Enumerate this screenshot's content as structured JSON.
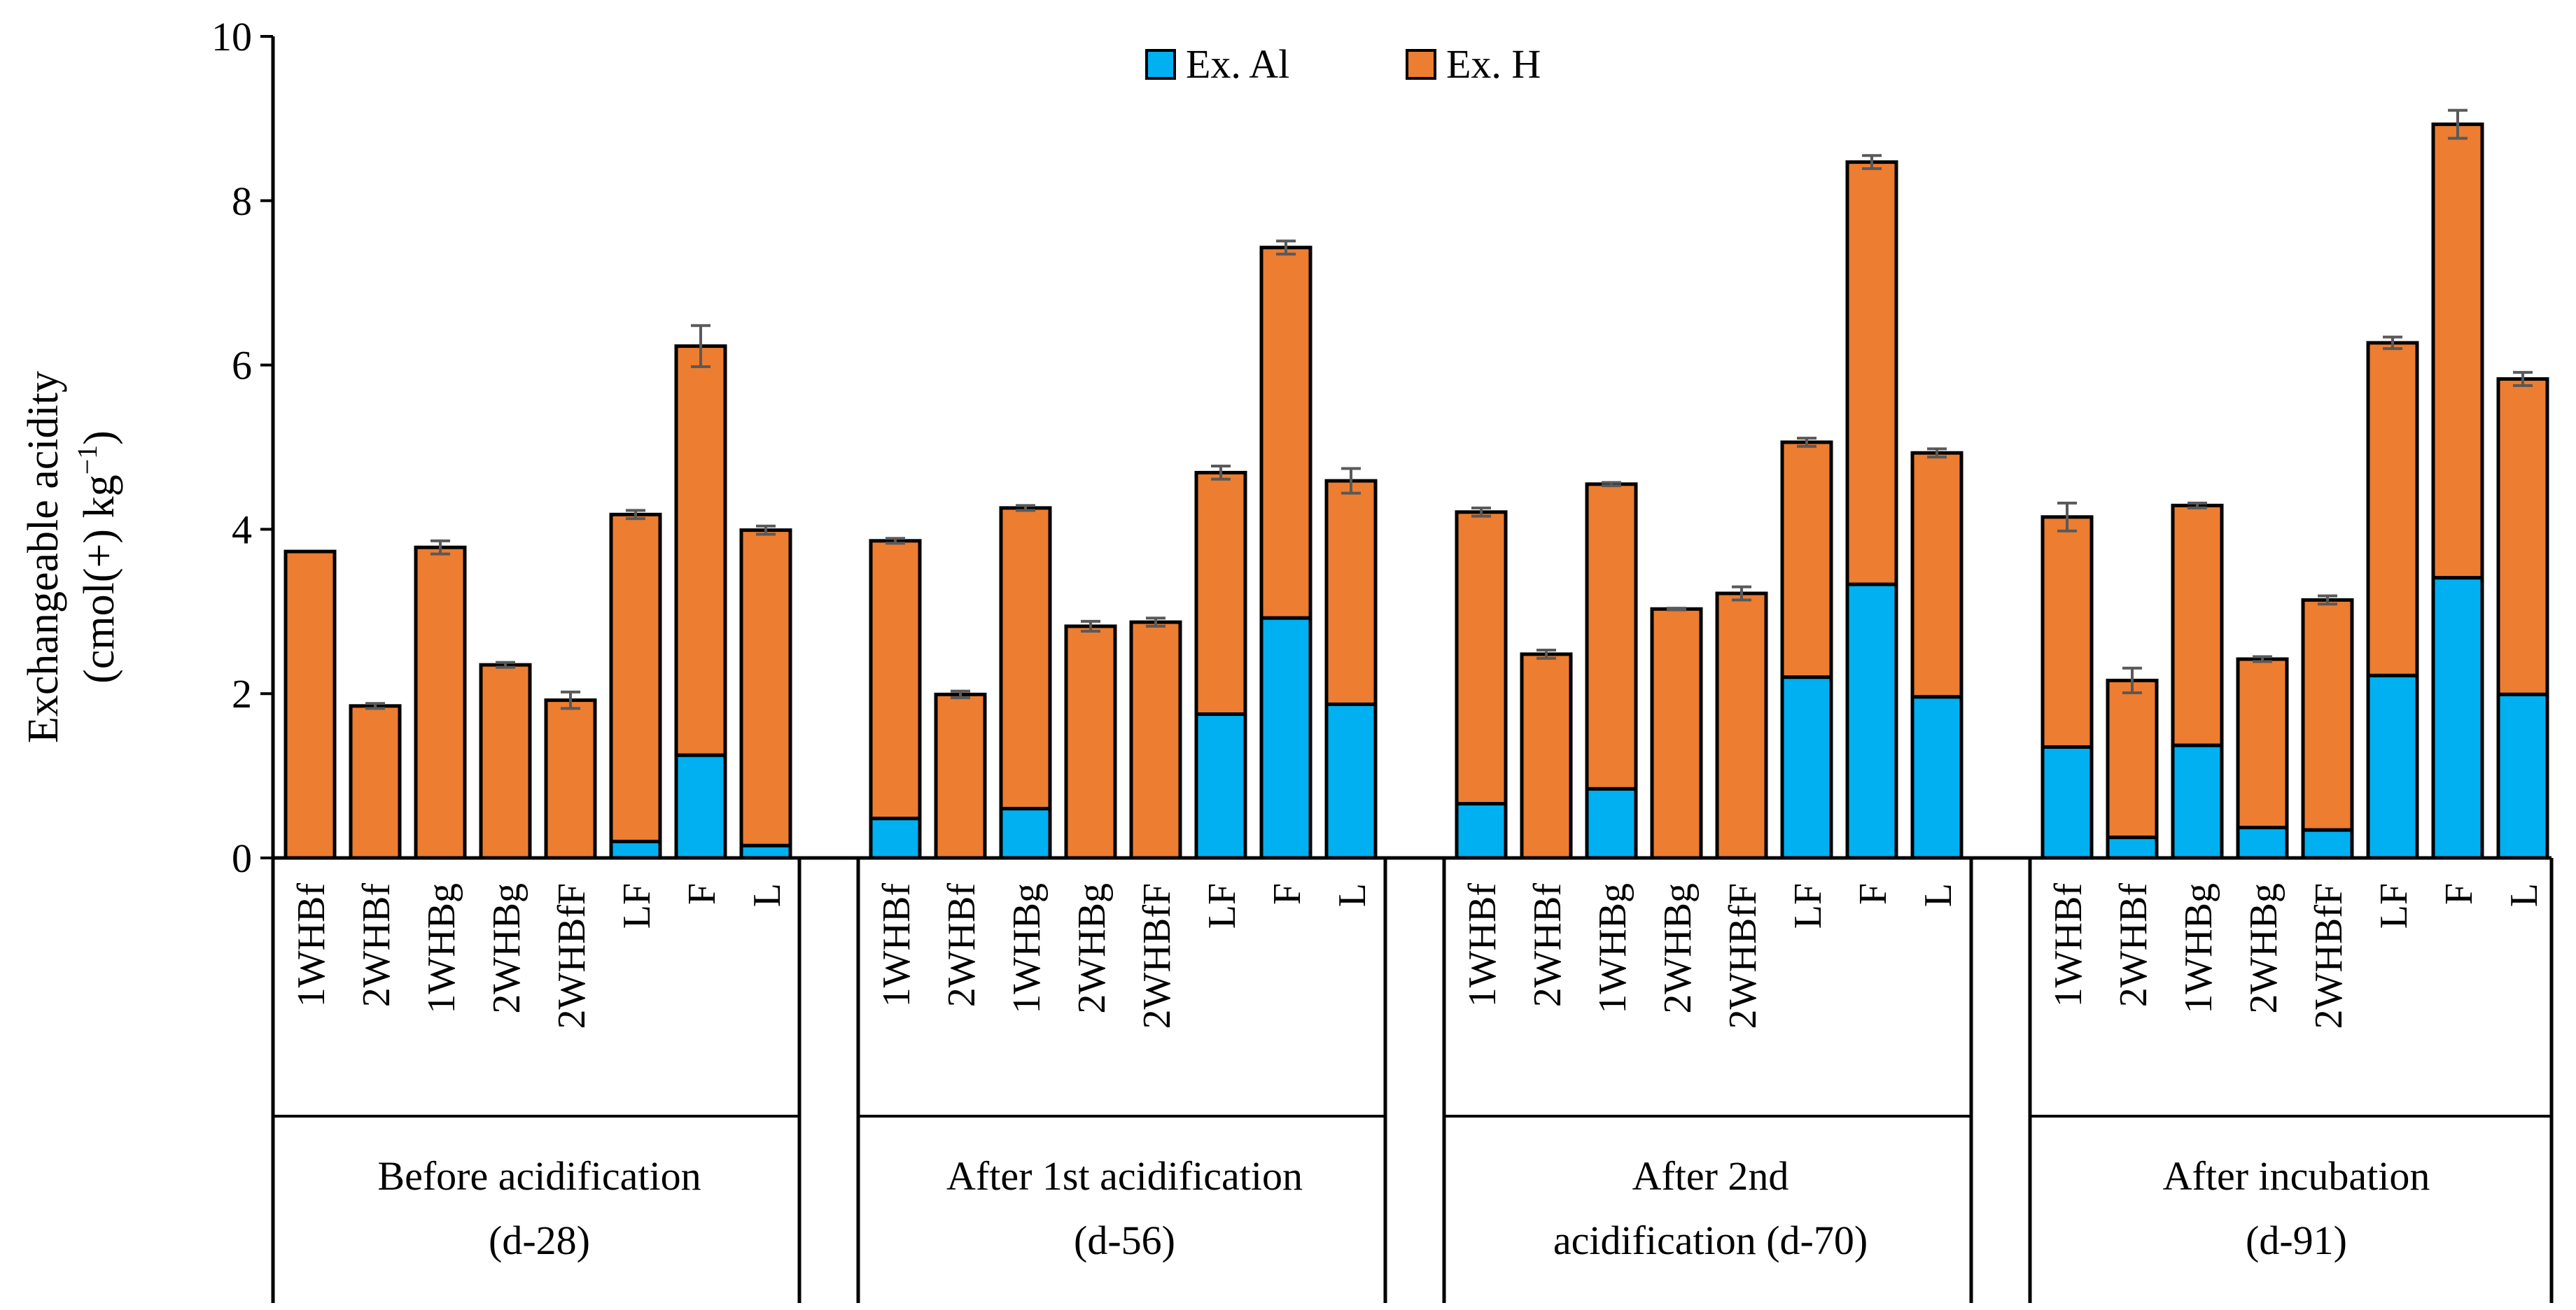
{
  "chart_data": {
    "type": "bar",
    "stacked": true,
    "ylabel_line1": "Exchangeable acidity",
    "ylabel_line2": "(cmol(+) kg",
    "ylabel_sup": "−1",
    "ylabel_close": ")",
    "ylim": [
      0,
      10
    ],
    "yticks": [
      0,
      2,
      4,
      6,
      8,
      10
    ],
    "grid": false,
    "legend_position": "top-center",
    "series_colors": {
      "al": "#00b0f0",
      "h": "#ed7d31"
    },
    "legend": [
      {
        "key": "al",
        "label": "Ex. Al"
      },
      {
        "key": "h",
        "label": "Ex. H"
      }
    ],
    "groups": [
      {
        "label_lines": [
          "Before acidification",
          "(d-28)"
        ],
        "categories": [
          "1WHBf",
          "2WHBf",
          "1WHBg",
          "2WHBg",
          "2WHBfF",
          "LF",
          "F",
          "L"
        ],
        "al": [
          0,
          0,
          0,
          0,
          0,
          0.2,
          1.25,
          0.15
        ],
        "total": [
          3.73,
          1.85,
          3.78,
          2.35,
          1.92,
          4.18,
          6.23,
          3.99
        ],
        "error": [
          0,
          0.03,
          0.08,
          0.03,
          0.1,
          0.05,
          0.25,
          0.05
        ]
      },
      {
        "label_lines": [
          "After 1st acidification",
          "(d-56)"
        ],
        "categories": [
          "1WHBf",
          "2WHBf",
          "1WHBg",
          "2WHBg",
          "2WHBfF",
          "LF",
          "F",
          "L"
        ],
        "al": [
          0.48,
          0,
          0.6,
          0,
          0,
          1.75,
          2.92,
          1.87
        ],
        "total": [
          3.86,
          1.99,
          4.26,
          2.82,
          2.87,
          4.69,
          7.43,
          4.59
        ],
        "error": [
          0.03,
          0.04,
          0.03,
          0.06,
          0.05,
          0.08,
          0.08,
          0.15
        ]
      },
      {
        "label_lines": [
          "After 2nd",
          "acidification (d-70)"
        ],
        "categories": [
          "1WHBf",
          "2WHBf",
          "1WHBg",
          "2WHBg",
          "2WHBfF",
          "LF",
          "F",
          "L"
        ],
        "al": [
          0.66,
          0,
          0.84,
          0,
          0,
          2.2,
          3.33,
          1.96
        ],
        "total": [
          4.21,
          2.48,
          4.55,
          3.03,
          3.22,
          5.06,
          8.47,
          4.93
        ],
        "error": [
          0.05,
          0.05,
          0.02,
          0.01,
          0.08,
          0.05,
          0.08,
          0.05
        ]
      },
      {
        "label_lines": [
          "After incubation",
          "(d-91)"
        ],
        "categories": [
          "1WHBf",
          "2WHBf",
          "1WHBg",
          "2WHBg",
          "2WHBfF",
          "LF",
          "F",
          "L"
        ],
        "al": [
          1.35,
          0.25,
          1.37,
          0.37,
          0.34,
          2.22,
          3.41,
          1.99
        ],
        "total": [
          4.15,
          2.16,
          4.29,
          2.42,
          3.14,
          6.27,
          8.93,
          5.83
        ],
        "error": [
          0.17,
          0.15,
          0.03,
          0.03,
          0.05,
          0.07,
          0.17,
          0.08
        ]
      }
    ]
  }
}
